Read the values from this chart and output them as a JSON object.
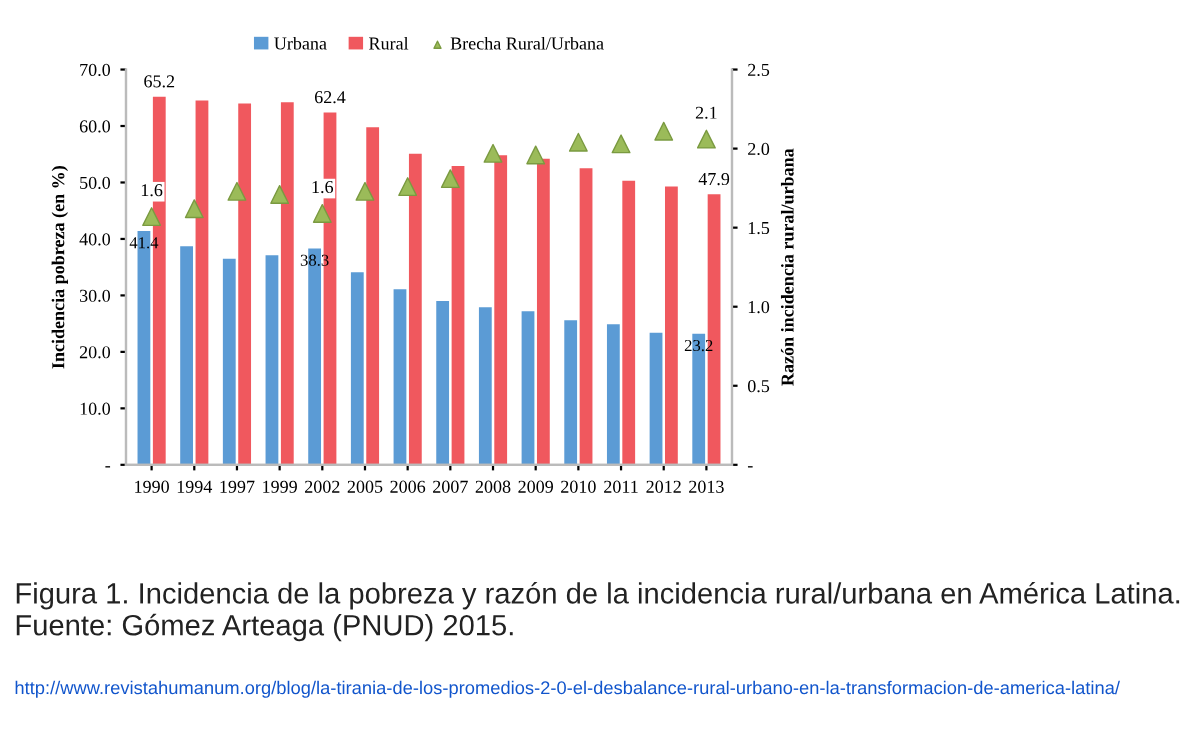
{
  "chart_data": {
    "type": "bar",
    "ylabel": "Incidencia pobreza (en %)",
    "y2label": "Razón incidencia rural/urbana",
    "categories": [
      "1990",
      "1994",
      "1997",
      "1999",
      "2002",
      "2005",
      "2006",
      "2007",
      "2008",
      "2009",
      "2010",
      "2011",
      "2012",
      "2013"
    ],
    "series": [
      {
        "name": "Urbana",
        "color": "#5b9bd5",
        "values": [
          41.4,
          38.7,
          36.5,
          37.1,
          38.3,
          34.1,
          31.1,
          29.0,
          27.9,
          27.2,
          25.6,
          24.9,
          23.4,
          23.2
        ],
        "value_labels": [
          "41.4",
          null,
          null,
          null,
          "38.3",
          null,
          null,
          null,
          null,
          null,
          null,
          null,
          null,
          "23.2"
        ]
      },
      {
        "name": "Rural",
        "color": "#f0585e",
        "values": [
          65.2,
          64.5,
          64.0,
          64.2,
          62.4,
          59.8,
          55.1,
          52.9,
          54.8,
          54.2,
          52.5,
          50.3,
          49.3,
          47.9
        ],
        "value_labels": [
          "65.2",
          null,
          null,
          null,
          "62.4",
          null,
          null,
          null,
          null,
          null,
          null,
          null,
          null,
          "47.9"
        ]
      },
      {
        "name": "Brecha Rural/Urbana",
        "type": "scatter",
        "axis": "y2",
        "color": "#9bbb59",
        "marker": "triangle",
        "values": [
          1.57,
          1.62,
          1.73,
          1.71,
          1.59,
          1.73,
          1.76,
          1.81,
          1.97,
          1.96,
          2.04,
          2.03,
          2.11,
          2.06
        ],
        "value_labels": [
          "1.6",
          null,
          null,
          null,
          "1.6",
          null,
          null,
          null,
          null,
          null,
          null,
          null,
          null,
          "2.1"
        ]
      }
    ],
    "ylim": [
      0,
      70
    ],
    "yticks": [
      {
        "value": 0,
        "label": "-"
      },
      {
        "value": 10,
        "label": "10.0"
      },
      {
        "value": 20,
        "label": "20.0"
      },
      {
        "value": 30,
        "label": "30.0"
      },
      {
        "value": 40,
        "label": "40.0"
      },
      {
        "value": 50,
        "label": "50.0"
      },
      {
        "value": 60,
        "label": "60.0"
      },
      {
        "value": 70,
        "label": "70.0"
      }
    ],
    "y2lim": [
      0,
      2.5
    ],
    "y2ticks": [
      {
        "value": 0,
        "label": "-"
      },
      {
        "value": 0.5,
        "label": "0.5"
      },
      {
        "value": 1.0,
        "label": "1.0"
      },
      {
        "value": 1.5,
        "label": "1.5"
      },
      {
        "value": 2.0,
        "label": "2.0"
      },
      {
        "value": 2.5,
        "label": "2.5"
      }
    ],
    "grid": false,
    "legend": "top",
    "annotations": [
      "Figura 1. Incidencia de la pobreza y razón de la incidencia rural/urbana en América Latina. Fuente: Gómez Arteaga (PNUD) 2015.",
      "http://www.revistahumanum.org/blog/la-tirania-de-los-promedios-2-0-el-desbalance-rural-urbano-en-la-transformacion-de-america-latina/"
    ]
  }
}
